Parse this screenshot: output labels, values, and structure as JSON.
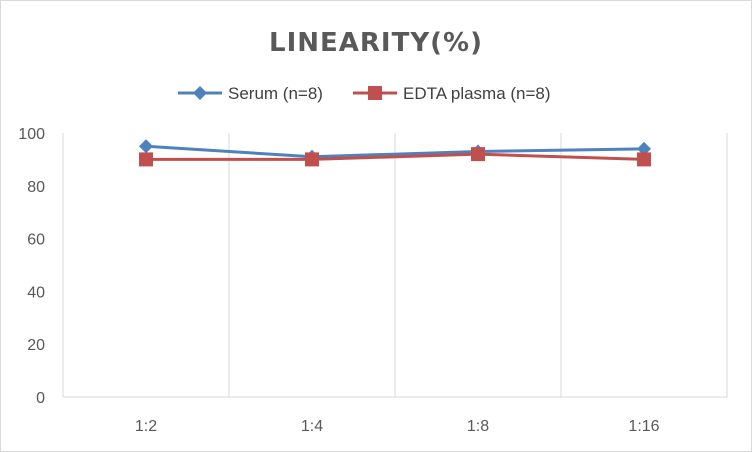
{
  "chart_data": {
    "type": "line",
    "title": "LINEARITY(%)",
    "xlabel": "",
    "ylabel": "",
    "categories": [
      "1:2",
      "1:4",
      "1:8",
      "1:16"
    ],
    "ylim": [
      0,
      100
    ],
    "yticks": [
      0,
      20,
      40,
      60,
      80,
      100
    ],
    "grid": "vertical",
    "legend_position": "top",
    "series": [
      {
        "name": "Serum (n=8)",
        "values": [
          95,
          91,
          93,
          94
        ],
        "color": "#4f81bd",
        "marker": "diamond"
      },
      {
        "name": "EDTA plasma (n=8)",
        "values": [
          90,
          90,
          92,
          90
        ],
        "color": "#c0504d",
        "marker": "square"
      }
    ]
  }
}
